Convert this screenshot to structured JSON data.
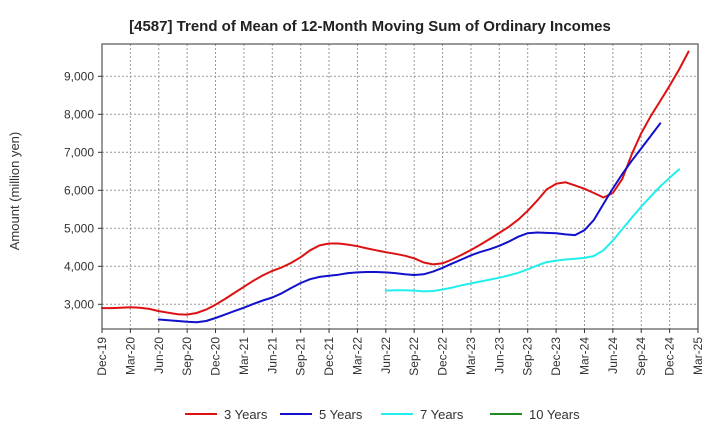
{
  "chart_data": {
    "type": "line",
    "title": "[4587]  Trend of Mean of 12-Month Moving Sum of Ordinary Incomes",
    "xlabel": "",
    "ylabel": "Amount (million yen)",
    "ylim": [
      2350,
      9850
    ],
    "yticks": [
      3000,
      4000,
      5000,
      6000,
      7000,
      8000,
      9000
    ],
    "ytick_labels": [
      "3,000",
      "4,000",
      "5,000",
      "6,000",
      "7,000",
      "8,000",
      "9,000"
    ],
    "x_start": "2019-12",
    "x_end": "2025-03",
    "xtick_labels": [
      "Dec-19",
      "Mar-20",
      "Jun-20",
      "Sep-20",
      "Dec-20",
      "Mar-21",
      "Jun-21",
      "Sep-21",
      "Dec-21",
      "Mar-22",
      "Jun-22",
      "Sep-22",
      "Dec-22",
      "Mar-23",
      "Jun-23",
      "Sep-23",
      "Dec-23",
      "Mar-24",
      "Jun-24",
      "Sep-24",
      "Dec-24",
      "Mar-25"
    ],
    "grid": true,
    "legend_position": "bottom",
    "series": [
      {
        "name": "3 Years",
        "color": "#dd1111",
        "start": "2019-12",
        "values": [
          2900,
          2900,
          2910,
          2920,
          2910,
          2880,
          2820,
          2780,
          2740,
          2730,
          2770,
          2860,
          2990,
          3140,
          3300,
          3460,
          3620,
          3760,
          3880,
          3970,
          4090,
          4240,
          4420,
          4550,
          4600,
          4600,
          4570,
          4530,
          4470,
          4420,
          4370,
          4330,
          4280,
          4210,
          4100,
          4050,
          4080,
          4180,
          4300,
          4430,
          4570,
          4720,
          4880,
          5040,
          5230,
          5460,
          5730,
          6020,
          6170,
          6210,
          6130,
          6040,
          5930,
          5810,
          5930,
          6300,
          6950,
          7500,
          7950,
          8350,
          8750,
          9180,
          9650
        ]
      },
      {
        "name": "5 Years",
        "color": "#1111cc",
        "start": "2020-06",
        "values": [
          2600,
          2580,
          2560,
          2540,
          2530,
          2560,
          2640,
          2730,
          2820,
          2910,
          3010,
          3100,
          3180,
          3290,
          3430,
          3560,
          3660,
          3720,
          3750,
          3780,
          3820,
          3840,
          3850,
          3850,
          3840,
          3820,
          3790,
          3770,
          3790,
          3860,
          3960,
          4070,
          4180,
          4290,
          4380,
          4450,
          4540,
          4650,
          4780,
          4870,
          4890,
          4880,
          4870,
          4840,
          4820,
          4950,
          5220,
          5640,
          6050,
          6430,
          6780,
          7100,
          7430,
          7760
        ]
      },
      {
        "name": "7 Years",
        "color": "#22eeee",
        "start": "2022-06",
        "values": [
          3360,
          3370,
          3370,
          3360,
          3340,
          3350,
          3390,
          3440,
          3500,
          3550,
          3600,
          3650,
          3700,
          3760,
          3830,
          3920,
          4020,
          4110,
          4150,
          4180,
          4200,
          4220,
          4270,
          4420,
          4680,
          4980,
          5280,
          5570,
          5840,
          6100,
          6330,
          6550
        ]
      },
      {
        "name": "10 Years",
        "color": "#228822",
        "start": "2019-12",
        "values": []
      }
    ]
  }
}
